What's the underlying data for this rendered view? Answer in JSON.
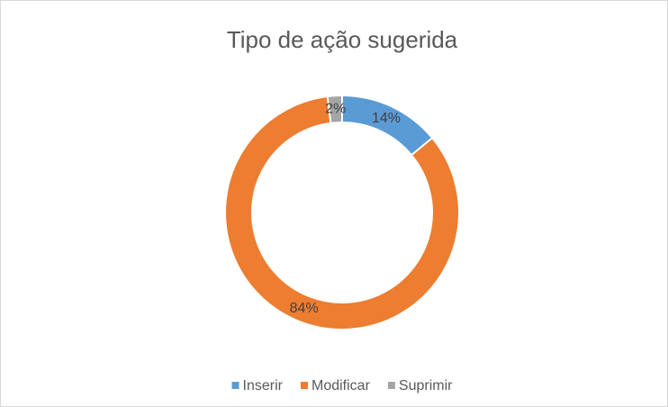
{
  "chart_data": {
    "type": "donut",
    "title": "Tipo de ação sugerida",
    "categories": [
      "Inserir",
      "Modificar",
      "Suprimir"
    ],
    "values": [
      14,
      84,
      2
    ],
    "value_labels": [
      "14%",
      "84%",
      "2%"
    ],
    "colors": [
      "#5b9bd5",
      "#ed7d31",
      "#a5a5a5"
    ],
    "legend": "bottom"
  }
}
